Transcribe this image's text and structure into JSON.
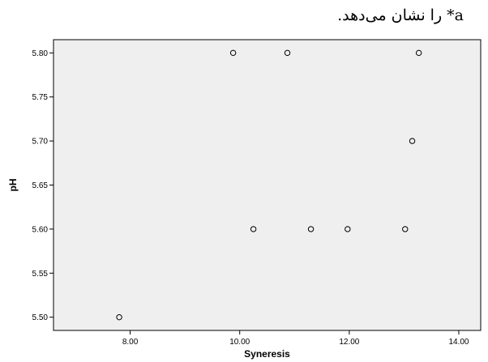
{
  "caption": "a* را نشان می‌دهد.",
  "chart_data": {
    "type": "scatter",
    "xlabel": "Syneresis",
    "ylabel": "pH",
    "xlim": [
      6.6,
      14.4
    ],
    "ylim": [
      5.485,
      5.815
    ],
    "x_ticks": [
      8.0,
      10.0,
      12.0,
      14.0
    ],
    "x_tick_labels": [
      "8.00",
      "10.00",
      "12.00",
      "14.00"
    ],
    "y_ticks": [
      5.5,
      5.55,
      5.6,
      5.65,
      5.7,
      5.75,
      5.8
    ],
    "y_tick_labels": [
      "5.50",
      "5.55",
      "5.60",
      "5.65",
      "5.70",
      "5.75",
      "5.80"
    ],
    "points": [
      {
        "x": 7.8,
        "y": 5.5
      },
      {
        "x": 9.88,
        "y": 5.8
      },
      {
        "x": 10.25,
        "y": 5.6
      },
      {
        "x": 10.87,
        "y": 5.8
      },
      {
        "x": 11.3,
        "y": 5.6
      },
      {
        "x": 11.97,
        "y": 5.6
      },
      {
        "x": 13.02,
        "y": 5.6
      },
      {
        "x": 13.15,
        "y": 5.7
      },
      {
        "x": 13.27,
        "y": 5.8
      }
    ],
    "grid": false,
    "legend": "none",
    "plot_background": "#efefef",
    "marker_color": "#000000"
  }
}
